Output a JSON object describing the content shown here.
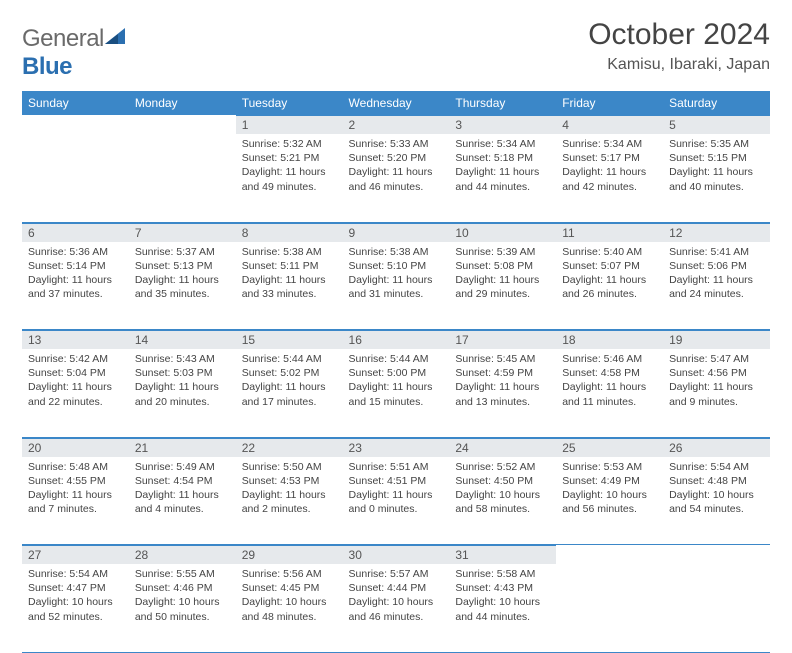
{
  "brand": {
    "part1": "General",
    "part2": "Blue"
  },
  "title": "October 2024",
  "location": "Kamisu, Ibaraki, Japan",
  "colors": {
    "header_bg": "#3b87c8",
    "header_text": "#ffffff",
    "daynum_bg": "#e6e9ec",
    "rule": "#3b87c8",
    "body_text": "#444444",
    "logo_gray": "#6a6a6a",
    "logo_blue": "#2b6fb0"
  },
  "day_headers": [
    "Sunday",
    "Monday",
    "Tuesday",
    "Wednesday",
    "Thursday",
    "Friday",
    "Saturday"
  ],
  "weeks": [
    [
      null,
      null,
      {
        "n": "1",
        "sr": "Sunrise: 5:32 AM",
        "ss": "Sunset: 5:21 PM",
        "dl": "Daylight: 11 hours and 49 minutes."
      },
      {
        "n": "2",
        "sr": "Sunrise: 5:33 AM",
        "ss": "Sunset: 5:20 PM",
        "dl": "Daylight: 11 hours and 46 minutes."
      },
      {
        "n": "3",
        "sr": "Sunrise: 5:34 AM",
        "ss": "Sunset: 5:18 PM",
        "dl": "Daylight: 11 hours and 44 minutes."
      },
      {
        "n": "4",
        "sr": "Sunrise: 5:34 AM",
        "ss": "Sunset: 5:17 PM",
        "dl": "Daylight: 11 hours and 42 minutes."
      },
      {
        "n": "5",
        "sr": "Sunrise: 5:35 AM",
        "ss": "Sunset: 5:15 PM",
        "dl": "Daylight: 11 hours and 40 minutes."
      }
    ],
    [
      {
        "n": "6",
        "sr": "Sunrise: 5:36 AM",
        "ss": "Sunset: 5:14 PM",
        "dl": "Daylight: 11 hours and 37 minutes."
      },
      {
        "n": "7",
        "sr": "Sunrise: 5:37 AM",
        "ss": "Sunset: 5:13 PM",
        "dl": "Daylight: 11 hours and 35 minutes."
      },
      {
        "n": "8",
        "sr": "Sunrise: 5:38 AM",
        "ss": "Sunset: 5:11 PM",
        "dl": "Daylight: 11 hours and 33 minutes."
      },
      {
        "n": "9",
        "sr": "Sunrise: 5:38 AM",
        "ss": "Sunset: 5:10 PM",
        "dl": "Daylight: 11 hours and 31 minutes."
      },
      {
        "n": "10",
        "sr": "Sunrise: 5:39 AM",
        "ss": "Sunset: 5:08 PM",
        "dl": "Daylight: 11 hours and 29 minutes."
      },
      {
        "n": "11",
        "sr": "Sunrise: 5:40 AM",
        "ss": "Sunset: 5:07 PM",
        "dl": "Daylight: 11 hours and 26 minutes."
      },
      {
        "n": "12",
        "sr": "Sunrise: 5:41 AM",
        "ss": "Sunset: 5:06 PM",
        "dl": "Daylight: 11 hours and 24 minutes."
      }
    ],
    [
      {
        "n": "13",
        "sr": "Sunrise: 5:42 AM",
        "ss": "Sunset: 5:04 PM",
        "dl": "Daylight: 11 hours and 22 minutes."
      },
      {
        "n": "14",
        "sr": "Sunrise: 5:43 AM",
        "ss": "Sunset: 5:03 PM",
        "dl": "Daylight: 11 hours and 20 minutes."
      },
      {
        "n": "15",
        "sr": "Sunrise: 5:44 AM",
        "ss": "Sunset: 5:02 PM",
        "dl": "Daylight: 11 hours and 17 minutes."
      },
      {
        "n": "16",
        "sr": "Sunrise: 5:44 AM",
        "ss": "Sunset: 5:00 PM",
        "dl": "Daylight: 11 hours and 15 minutes."
      },
      {
        "n": "17",
        "sr": "Sunrise: 5:45 AM",
        "ss": "Sunset: 4:59 PM",
        "dl": "Daylight: 11 hours and 13 minutes."
      },
      {
        "n": "18",
        "sr": "Sunrise: 5:46 AM",
        "ss": "Sunset: 4:58 PM",
        "dl": "Daylight: 11 hours and 11 minutes."
      },
      {
        "n": "19",
        "sr": "Sunrise: 5:47 AM",
        "ss": "Sunset: 4:56 PM",
        "dl": "Daylight: 11 hours and 9 minutes."
      }
    ],
    [
      {
        "n": "20",
        "sr": "Sunrise: 5:48 AM",
        "ss": "Sunset: 4:55 PM",
        "dl": "Daylight: 11 hours and 7 minutes."
      },
      {
        "n": "21",
        "sr": "Sunrise: 5:49 AM",
        "ss": "Sunset: 4:54 PM",
        "dl": "Daylight: 11 hours and 4 minutes."
      },
      {
        "n": "22",
        "sr": "Sunrise: 5:50 AM",
        "ss": "Sunset: 4:53 PM",
        "dl": "Daylight: 11 hours and 2 minutes."
      },
      {
        "n": "23",
        "sr": "Sunrise: 5:51 AM",
        "ss": "Sunset: 4:51 PM",
        "dl": "Daylight: 11 hours and 0 minutes."
      },
      {
        "n": "24",
        "sr": "Sunrise: 5:52 AM",
        "ss": "Sunset: 4:50 PM",
        "dl": "Daylight: 10 hours and 58 minutes."
      },
      {
        "n": "25",
        "sr": "Sunrise: 5:53 AM",
        "ss": "Sunset: 4:49 PM",
        "dl": "Daylight: 10 hours and 56 minutes."
      },
      {
        "n": "26",
        "sr": "Sunrise: 5:54 AM",
        "ss": "Sunset: 4:48 PM",
        "dl": "Daylight: 10 hours and 54 minutes."
      }
    ],
    [
      {
        "n": "27",
        "sr": "Sunrise: 5:54 AM",
        "ss": "Sunset: 4:47 PM",
        "dl": "Daylight: 10 hours and 52 minutes."
      },
      {
        "n": "28",
        "sr": "Sunrise: 5:55 AM",
        "ss": "Sunset: 4:46 PM",
        "dl": "Daylight: 10 hours and 50 minutes."
      },
      {
        "n": "29",
        "sr": "Sunrise: 5:56 AM",
        "ss": "Sunset: 4:45 PM",
        "dl": "Daylight: 10 hours and 48 minutes."
      },
      {
        "n": "30",
        "sr": "Sunrise: 5:57 AM",
        "ss": "Sunset: 4:44 PM",
        "dl": "Daylight: 10 hours and 46 minutes."
      },
      {
        "n": "31",
        "sr": "Sunrise: 5:58 AM",
        "ss": "Sunset: 4:43 PM",
        "dl": "Daylight: 10 hours and 44 minutes."
      },
      null,
      null
    ]
  ]
}
